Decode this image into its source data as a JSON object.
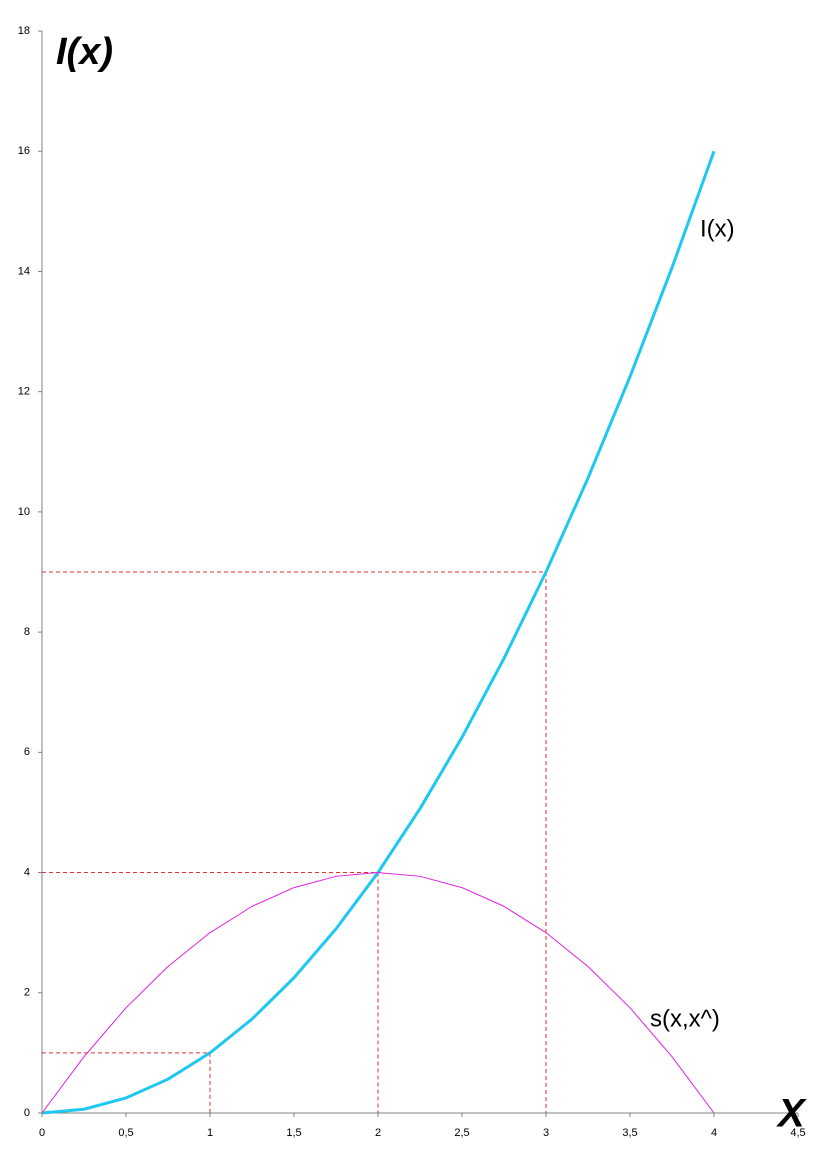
{
  "chart_data": {
    "type": "line",
    "axis_title_y": "I(x)",
    "axis_title_x": "X",
    "x": [
      0,
      0.25,
      0.5,
      0.75,
      1,
      1.25,
      1.5,
      1.75,
      2,
      2.25,
      2.5,
      2.75,
      3,
      3.25,
      3.5,
      3.75,
      4
    ],
    "series": [
      {
        "name": "I(x)",
        "color": "#1ec8f0",
        "values": [
          0,
          0.0625,
          0.25,
          0.5625,
          1,
          1.5625,
          2.25,
          3.0625,
          4,
          5.0625,
          6.25,
          7.5625,
          9,
          10.5625,
          12.25,
          14.0625,
          16
        ]
      },
      {
        "name": "s(x,x^)",
        "color": "#e020e0",
        "values": [
          0,
          0.9375,
          1.75,
          2.4375,
          3,
          3.4375,
          3.75,
          3.9375,
          4,
          3.9375,
          3.75,
          3.4375,
          3,
          2.4375,
          1.75,
          0.9375,
          0
        ]
      }
    ],
    "reference_points": {
      "color": "#e03030",
      "x": [
        1,
        2,
        3
      ],
      "y": [
        1,
        4,
        9
      ]
    },
    "xlim": [
      0,
      4.5
    ],
    "ylim": [
      0,
      18
    ],
    "xticks": [
      0,
      {
        "value": 0.5,
        "label": "0,5"
      },
      1,
      {
        "value": 1.5,
        "label": "1,5"
      },
      2,
      {
        "value": 2.5,
        "label": "2,5"
      },
      3,
      {
        "value": 3.5,
        "label": "3,5"
      },
      4,
      {
        "value": 4.5,
        "label": "4,5"
      }
    ],
    "yticks": [
      0,
      2,
      4,
      6,
      8,
      10,
      12,
      14,
      16,
      18
    ],
    "grid": false
  }
}
